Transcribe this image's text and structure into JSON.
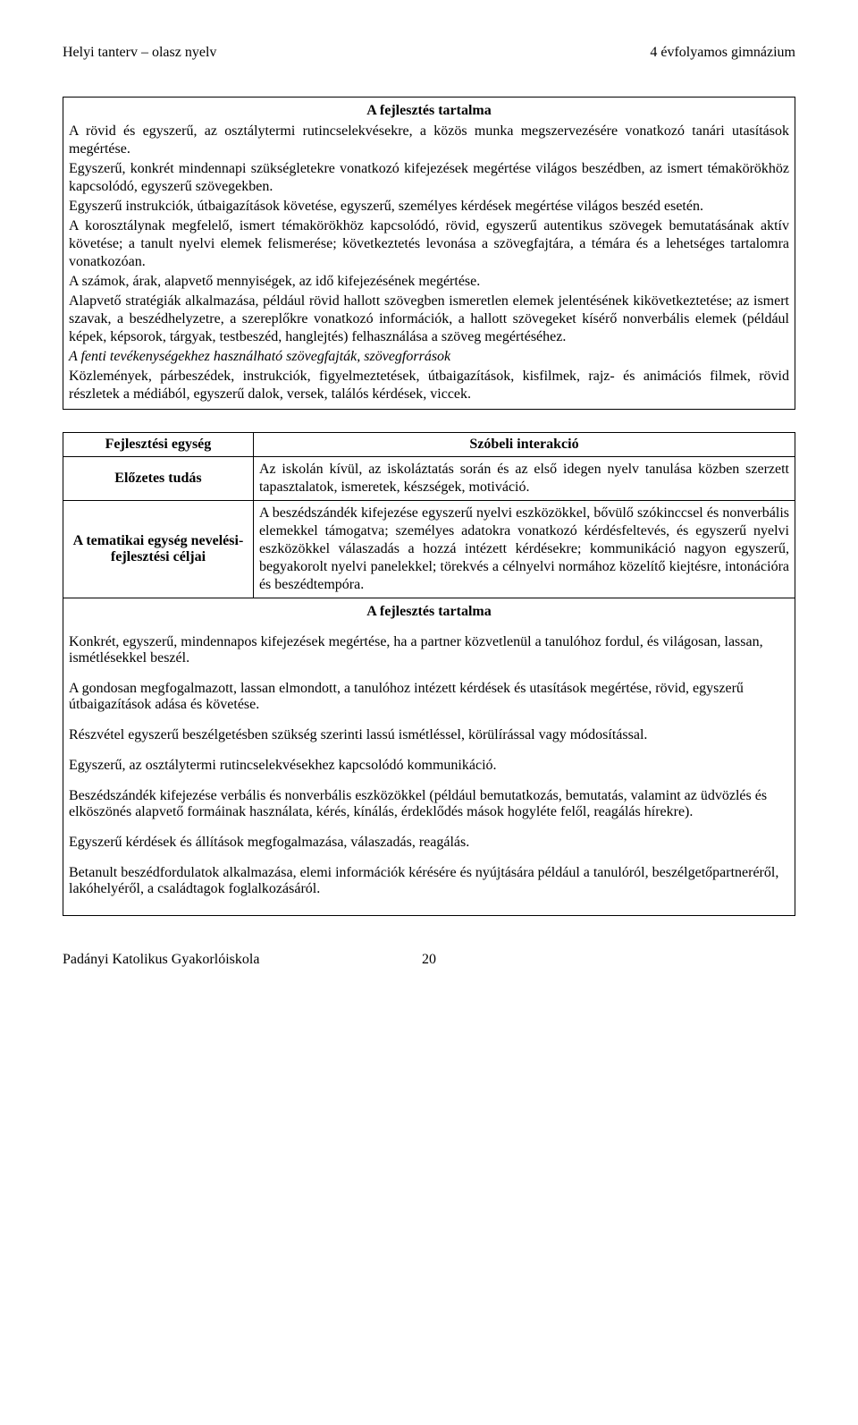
{
  "header": {
    "left": "Helyi tanterv – olasz nyelv",
    "right": "4 évfolyamos gimnázium"
  },
  "box1": {
    "title": "A fejlesztés tartalma",
    "p1": "A rövid és egyszerű, az osztálytermi rutincselekvésekre, a közös munka megszervezésére vonatkozó tanári utasítások megértése.",
    "p2": "Egyszerű, konkrét mindennapi szükségletekre vonatkozó kifejezések megértése világos beszédben, az ismert témakörökhöz kapcsolódó, egyszerű szövegekben.",
    "p3": "Egyszerű instrukciók, útbaigazítások követése, egyszerű, személyes kérdések megértése világos beszéd esetén.",
    "p4": "A korosztálynak megfelelő, ismert témakörökhöz kapcsolódó, rövid, egyszerű autentikus szövegek bemutatásának aktív követése; a tanult nyelvi elemek felismerése; következtetés levonása a szövegfajtára, a témára és a lehetséges tartalomra vonatkozóan.",
    "p5": "A számok, árak, alapvető mennyiségek, az idő kifejezésének megértése.",
    "p6": "Alapvető stratégiák alkalmazása, például rövid hallott szövegben ismeretlen elemek jelentésének kikövetkeztetése; az ismert szavak, a beszédhelyzetre, a szereplőkre vonatkozó információk, a hallott szövegeket kísérő nonverbális elemek (például képek, képsorok, tárgyak, testbeszéd, hanglejtés) felhasználása a szöveg megértéséhez.",
    "p7_italic": "A fenti tevékenységekhez használható szövegfajták, szövegforrások",
    "p8": "Közlemények, párbeszédek, instrukciók, figyelmeztetések, útbaigazítások, kisfilmek, rajz- és animációs filmek, rövid részletek a médiából, egyszerű dalok, versek, találós kérdések, viccek."
  },
  "grid": {
    "row1_label": "Fejlesztési egység",
    "row1_title": "Szóbeli interakció",
    "row2_label": "Előzetes tudás",
    "row2_content": "Az iskolán kívül, az iskoláztatás során és az első idegen nyelv tanulása közben szerzett tapasztalatok, ismeretek, készségek, motiváció.",
    "row3_label": "A tematikai egység nevelési-fejlesztési céljai",
    "row3_content": "A beszédszándék kifejezése egyszerű nyelvi eszközökkel, bővülő szókinccsel és nonverbális elemekkel támogatva; személyes adatokra vonatkozó kérdésfeltevés, és egyszerű nyelvi eszközökkel válaszadás a hozzá intézett kérdésekre; kommunikáció nagyon egyszerű, begyakorolt nyelvi panelekkel; törekvés a célnyelvi normához közelítő kiejtésre, intonációra és beszédtempóra.",
    "section2_title": "A fejlesztés tartalma",
    "sp1": "Konkrét, egyszerű, mindennapos kifejezések megértése, ha a partner közvetlenül a tanulóhoz fordul, és világosan, lassan, ismétlésekkel beszél.",
    "sp2": "A gondosan megfogalmazott, lassan elmondott, a tanulóhoz intézett kérdések és utasítások megértése, rövid, egyszerű útbaigazítások adása és követése.",
    "sp3": "Részvétel egyszerű beszélgetésben szükség szerinti lassú ismétléssel, körülírással vagy módosítással.",
    "sp4": "Egyszerű, az osztálytermi rutincselekvésekhez kapcsolódó kommunikáció.",
    "sp5": "Beszédszándék kifejezése verbális és nonverbális eszközökkel (például bemutatkozás, bemutatás, valamint az üdvözlés és elköszönés alapvető formáinak használata, kérés, kínálás, érdeklődés mások hogyléte felől, reagálás hírekre).",
    "sp6": "Egyszerű kérdések és állítások megfogalmazása, válaszadás, reagálás.",
    "sp7": "Betanult beszédfordulatok alkalmazása, elemi információk kérésére és nyújtására például a tanulóról, beszélgetőpartneréről, lakóhelyéről, a családtagok foglalkozásáról."
  },
  "footer": {
    "left": "Padányi Katolikus Gyakorlóiskola",
    "page": "20"
  }
}
